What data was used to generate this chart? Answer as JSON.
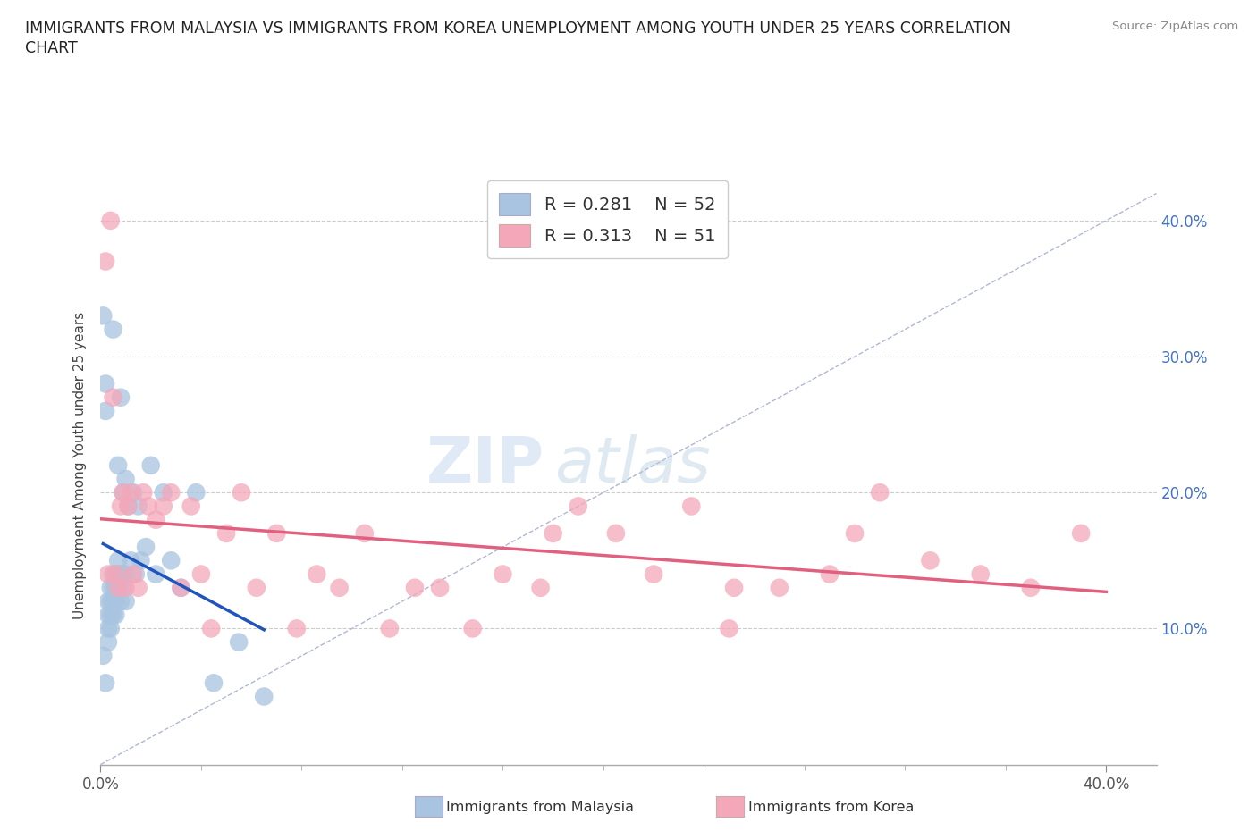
{
  "title_line1": "IMMIGRANTS FROM MALAYSIA VS IMMIGRANTS FROM KOREA UNEMPLOYMENT AMONG YOUTH UNDER 25 YEARS CORRELATION",
  "title_line2": "CHART",
  "source_text": "Source: ZipAtlas.com",
  "ylabel": "Unemployment Among Youth under 25 years",
  "xlim": [
    0.0,
    0.42
  ],
  "ylim": [
    0.0,
    0.44
  ],
  "xtick_major": [
    0.0,
    0.4
  ],
  "xtick_minor": [
    0.04,
    0.08,
    0.12,
    0.16,
    0.2,
    0.24,
    0.28,
    0.32,
    0.36
  ],
  "xtick_major_labels": [
    "0.0%",
    "40.0%"
  ],
  "ytick_vals": [
    0.1,
    0.2,
    0.3,
    0.4
  ],
  "ytick_labels": [
    "10.0%",
    "20.0%",
    "30.0%",
    "40.0%"
  ],
  "malaysia_color": "#a8c4e0",
  "korea_color": "#f4a7b9",
  "malaysia_line_color": "#2255bb",
  "korea_line_color": "#e06080",
  "diag_line_color": "#b0b8d0",
  "grid_color": "#cccccc",
  "malaysia_R": 0.281,
  "malaysia_N": 52,
  "korea_R": 0.313,
  "korea_N": 51,
  "malaysia_x": [
    0.001,
    0.001,
    0.002,
    0.002,
    0.002,
    0.003,
    0.003,
    0.003,
    0.003,
    0.004,
    0.004,
    0.004,
    0.004,
    0.005,
    0.005,
    0.005,
    0.005,
    0.005,
    0.006,
    0.006,
    0.006,
    0.006,
    0.007,
    0.007,
    0.007,
    0.007,
    0.008,
    0.008,
    0.008,
    0.008,
    0.009,
    0.009,
    0.009,
    0.01,
    0.01,
    0.01,
    0.011,
    0.012,
    0.013,
    0.014,
    0.015,
    0.016,
    0.018,
    0.02,
    0.022,
    0.025,
    0.028,
    0.032,
    0.038,
    0.045,
    0.055,
    0.065
  ],
  "malaysia_y": [
    0.08,
    0.33,
    0.06,
    0.28,
    0.26,
    0.12,
    0.11,
    0.1,
    0.09,
    0.13,
    0.12,
    0.11,
    0.1,
    0.32,
    0.14,
    0.13,
    0.12,
    0.11,
    0.14,
    0.13,
    0.12,
    0.11,
    0.22,
    0.15,
    0.14,
    0.13,
    0.27,
    0.14,
    0.13,
    0.12,
    0.2,
    0.14,
    0.13,
    0.21,
    0.14,
    0.12,
    0.19,
    0.15,
    0.2,
    0.14,
    0.19,
    0.15,
    0.16,
    0.22,
    0.14,
    0.2,
    0.15,
    0.13,
    0.2,
    0.06,
    0.09,
    0.05
  ],
  "korea_x": [
    0.002,
    0.003,
    0.004,
    0.005,
    0.006,
    0.007,
    0.008,
    0.009,
    0.01,
    0.011,
    0.012,
    0.013,
    0.015,
    0.017,
    0.019,
    0.022,
    0.025,
    0.028,
    0.032,
    0.036,
    0.04,
    0.044,
    0.05,
    0.056,
    0.062,
    0.07,
    0.078,
    0.086,
    0.095,
    0.105,
    0.115,
    0.125,
    0.135,
    0.148,
    0.16,
    0.175,
    0.19,
    0.205,
    0.22,
    0.235,
    0.252,
    0.27,
    0.29,
    0.31,
    0.33,
    0.35,
    0.37,
    0.39,
    0.3,
    0.25,
    0.18
  ],
  "korea_y": [
    0.37,
    0.14,
    0.4,
    0.27,
    0.14,
    0.13,
    0.19,
    0.2,
    0.13,
    0.19,
    0.2,
    0.14,
    0.13,
    0.2,
    0.19,
    0.18,
    0.19,
    0.2,
    0.13,
    0.19,
    0.14,
    0.1,
    0.17,
    0.2,
    0.13,
    0.17,
    0.1,
    0.14,
    0.13,
    0.17,
    0.1,
    0.13,
    0.13,
    0.1,
    0.14,
    0.13,
    0.19,
    0.17,
    0.14,
    0.19,
    0.13,
    0.13,
    0.14,
    0.2,
    0.15,
    0.14,
    0.13,
    0.17,
    0.17,
    0.1,
    0.17
  ],
  "watermark_zip": "ZIP",
  "watermark_atlas": "atlas",
  "background_color": "#ffffff"
}
